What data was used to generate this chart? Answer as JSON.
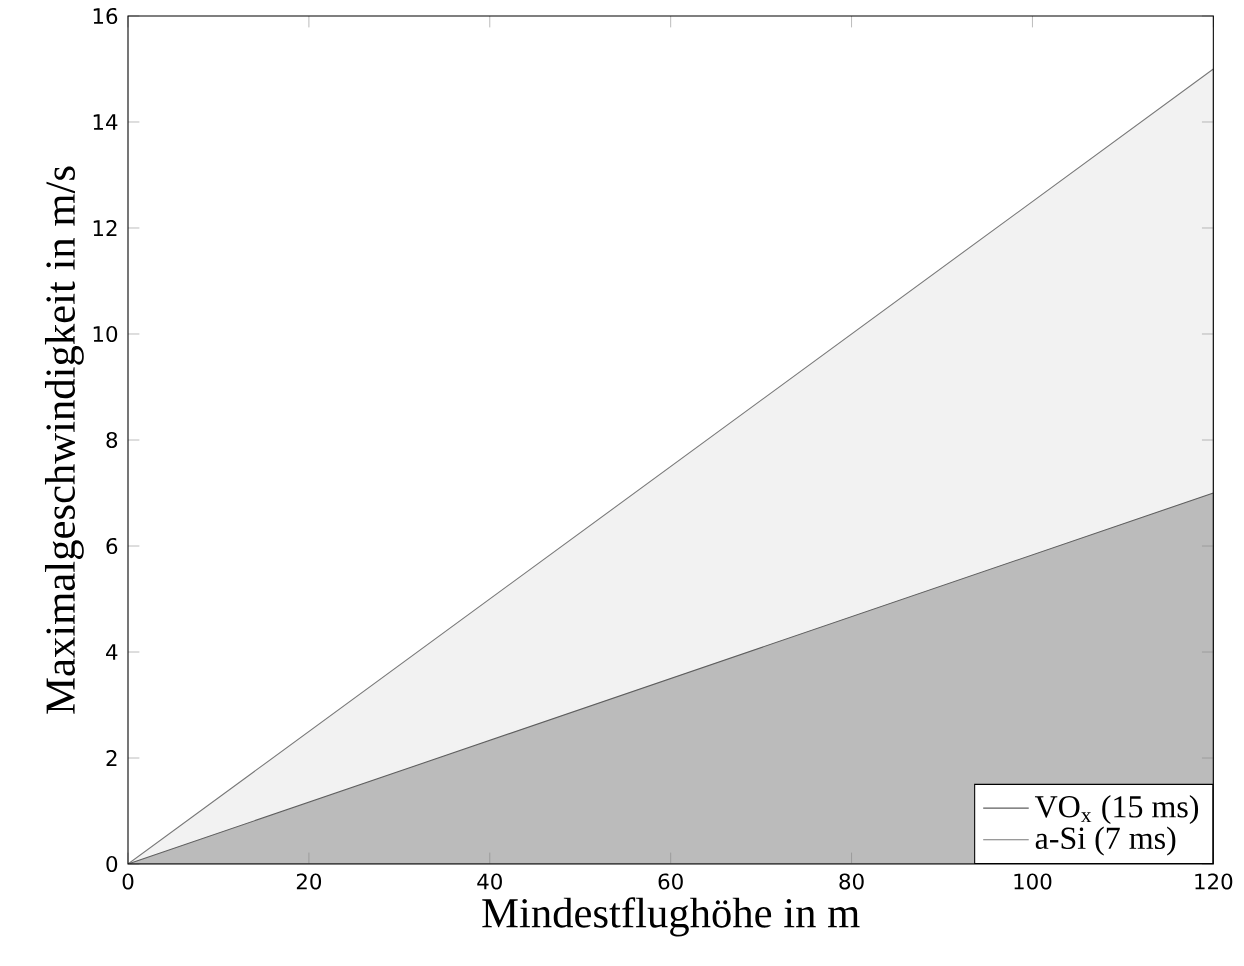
{
  "chart_data": {
    "type": "area",
    "xlabel": "Mindestflughöhe in m",
    "ylabel": "Maximalgeschwindigkeit in m/s",
    "x": [
      0,
      120
    ],
    "series": [
      {
        "name": "VO$_{x}$ (15 ms)",
        "color": "#bbbbbb",
        "values": [
          0,
          7
        ]
      },
      {
        "name": "a-Si (7 ms)",
        "color": "#f2f2f2",
        "values": [
          0,
          15
        ]
      }
    ],
    "xlim": [
      0,
      120
    ],
    "ylim": [
      0,
      16
    ],
    "xticks": [
      0,
      20,
      40,
      60,
      80,
      100,
      120
    ],
    "yticks": [
      0,
      2,
      4,
      6,
      8,
      10,
      12,
      14,
      16
    ],
    "grid": false,
    "legend": "bottom right"
  }
}
